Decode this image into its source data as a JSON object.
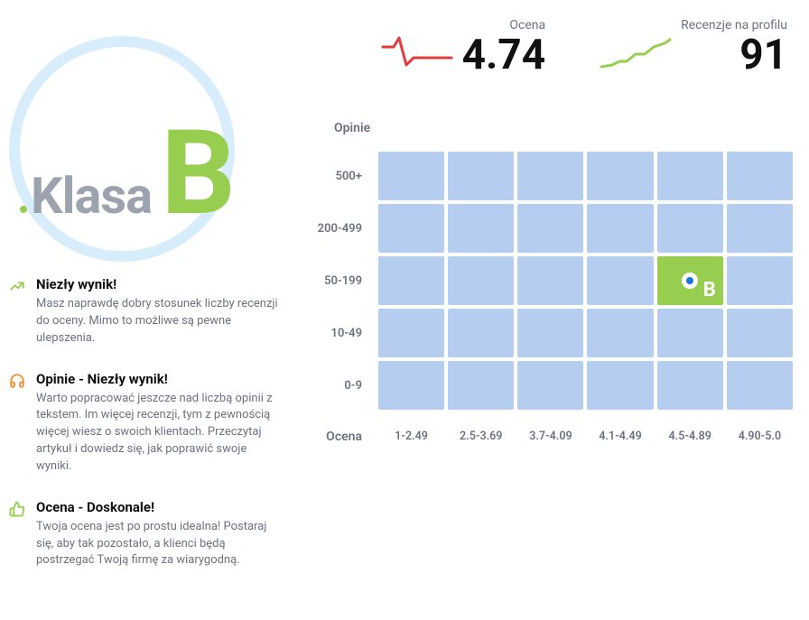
{
  "badge": {
    "prefix": "Klasa",
    "letter": "B",
    "letter_color": "#97ce4f",
    "prefix_color": "#9ca3af",
    "circle_color": "#d7edfb",
    "dot_color": "#97ce4f"
  },
  "feedback": [
    {
      "icon": "trend-up",
      "icon_color": "#97ce4f",
      "title": "Niezły wynik!",
      "desc": "Masz naprawdę dobry stosunek liczby recenzji do oceny. Mimo to możliwe są pewne ulepszenia."
    },
    {
      "icon": "headphones",
      "icon_color": "#f59033",
      "title": "Opinie - Niezły wynik!",
      "desc": "Warto popracować jeszcze nad liczbą opinii z tekstem. Im więcej recenzji, tym z pewnością więcej wiesz o swoich klientach. Przeczytaj artykuł i dowiedz się, jak poprawić swoje wyniki."
    },
    {
      "icon": "thumb-up",
      "icon_color": "#97ce4f",
      "title": "Ocena - Doskonale!",
      "desc": "Twoja ocena jest po prostu idealna! Postaraj się, aby tak pozostało, a klienci będą postrzegać Twoją firmę za wiarygodną."
    }
  ],
  "stats": {
    "rating": {
      "label": "Ocena",
      "value": "4.74",
      "spark_color": "#e23b3b"
    },
    "reviews": {
      "label": "Recenzje na profilu",
      "value": "91",
      "spark_color": "#97ce4f"
    }
  },
  "heatmap": {
    "y_title": "Opinie",
    "x_title": "Ocena",
    "row_labels": [
      "500+",
      "200-499",
      "50-199",
      "10-49",
      "0-9"
    ],
    "col_labels": [
      "1-2.49",
      "2.5-3.69",
      "3.7-4.09",
      "4.1-4.49",
      "4.5-4.89",
      "4.90-5.0"
    ],
    "cell_color": "#b5cef0",
    "highlight_color": "#97ce4f",
    "highlight": {
      "row": 2,
      "col": 4,
      "letter": "B"
    },
    "rows": 5,
    "cols": 6
  },
  "colors": {
    "text_muted": "#6b7280",
    "text_strong": "#111111",
    "background": "#ffffff"
  }
}
